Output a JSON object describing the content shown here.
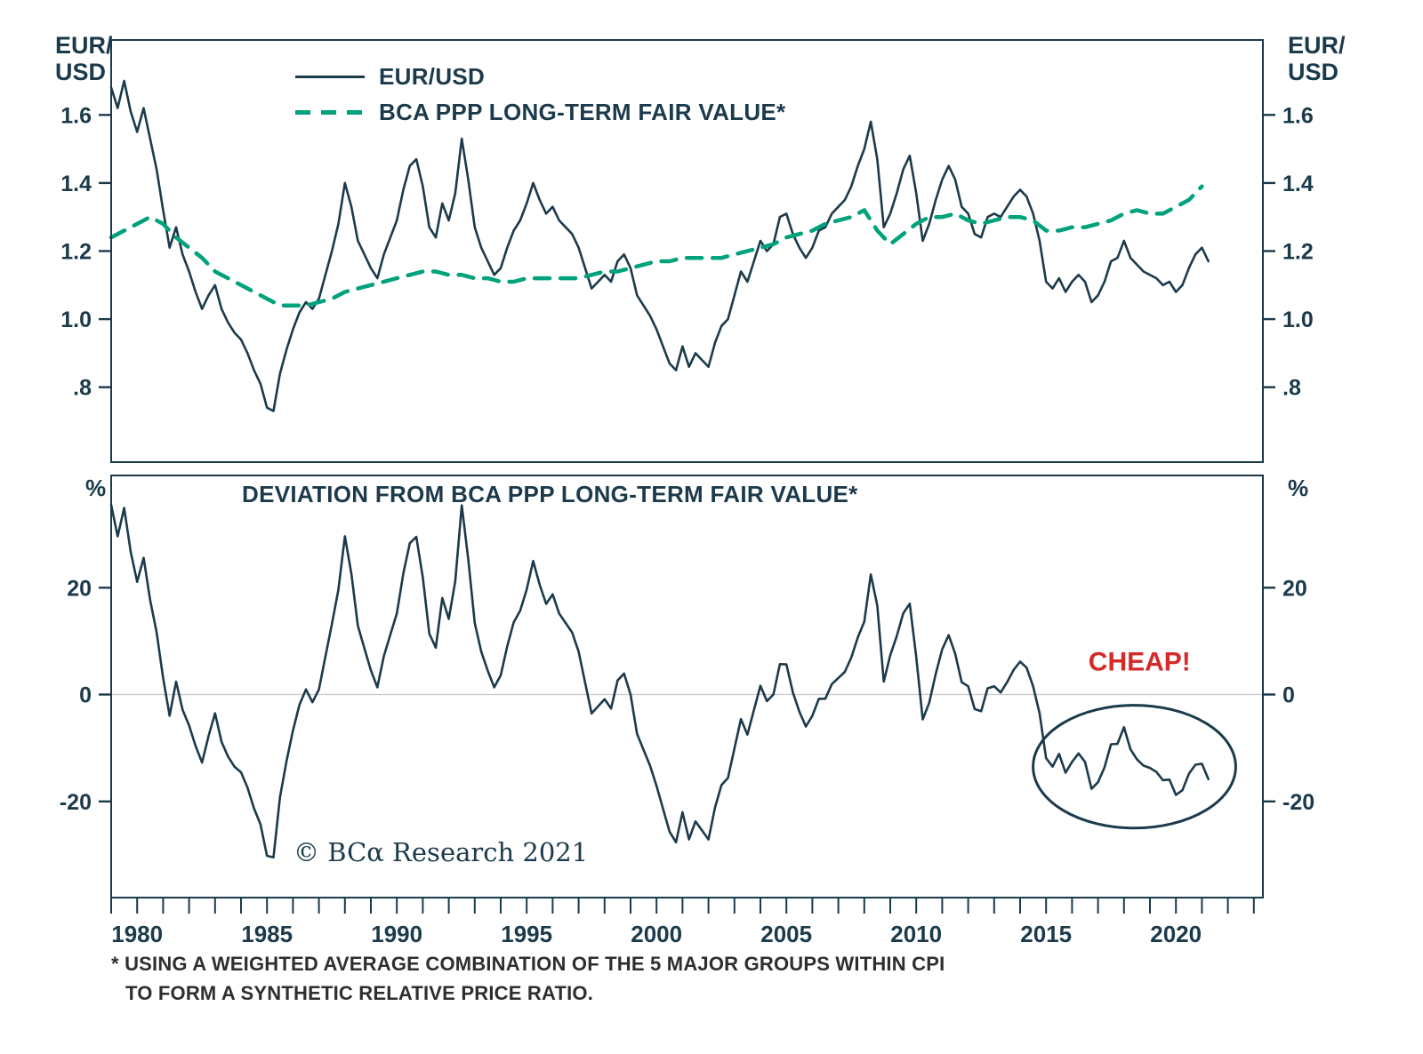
{
  "colors": {
    "navy": "#1b3a4b",
    "green": "#00a27b",
    "red": "#d42a2a",
    "zero_line": "#c9c9c9",
    "background": "#ffffff"
  },
  "top_panel": {
    "unit_label_line1": "EUR/",
    "unit_label_line2": "USD",
    "legend": [
      {
        "label": "EUR/USD",
        "style": "solid",
        "color": "#1b3a4b"
      },
      {
        "label": "BCA PPP LONG-TERM FAIR VALUE*",
        "style": "dashed",
        "color": "#00a27b"
      }
    ]
  },
  "bottom_panel": {
    "unit_label": "%",
    "title": "DEVIATION FROM BCA PPP LONG-TERM FAIR VALUE*",
    "cheap_annotation": "CHEAP!",
    "copyright": "© BCα Research 2021"
  },
  "footnote": {
    "line1": "* USING A WEIGHTED AVERAGE COMBINATION OF THE 5 MAJOR GROUPS WITHIN CPI",
    "line2": "TO FORM A SYNTHETIC RELATIVE PRICE RATIO."
  },
  "chart_data": [
    {
      "type": "line",
      "panel": "top",
      "ylabel": "EUR/USD",
      "xlim": [
        1979,
        2023.35
      ],
      "ylim": [
        0.58,
        1.82
      ],
      "yticks": [
        {
          "v": 0.8,
          "label": ".8"
        },
        {
          "v": 1.0,
          "label": "1.0"
        },
        {
          "v": 1.2,
          "label": "1.2"
        },
        {
          "v": 1.4,
          "label": "1.4"
        },
        {
          "v": 1.6,
          "label": "1.6"
        }
      ],
      "series": [
        {
          "name": "EUR/USD",
          "style": "solid",
          "color": "#1b3a4b",
          "x_start": 1979.0,
          "x_step": 0.25,
          "values": [
            1.68,
            1.62,
            1.7,
            1.61,
            1.55,
            1.62,
            1.53,
            1.44,
            1.32,
            1.21,
            1.27,
            1.19,
            1.14,
            1.08,
            1.03,
            1.07,
            1.1,
            1.03,
            0.99,
            0.96,
            0.94,
            0.9,
            0.85,
            0.81,
            0.74,
            0.73,
            0.84,
            0.91,
            0.97,
            1.02,
            1.05,
            1.03,
            1.06,
            1.13,
            1.2,
            1.28,
            1.4,
            1.33,
            1.23,
            1.19,
            1.15,
            1.12,
            1.19,
            1.24,
            1.29,
            1.38,
            1.45,
            1.47,
            1.39,
            1.27,
            1.24,
            1.34,
            1.29,
            1.37,
            1.53,
            1.41,
            1.27,
            1.21,
            1.17,
            1.13,
            1.15,
            1.21,
            1.26,
            1.29,
            1.34,
            1.4,
            1.35,
            1.31,
            1.33,
            1.29,
            1.27,
            1.25,
            1.21,
            1.15,
            1.09,
            1.11,
            1.13,
            1.11,
            1.17,
            1.19,
            1.15,
            1.07,
            1.04,
            1.01,
            0.97,
            0.92,
            0.87,
            0.85,
            0.92,
            0.86,
            0.9,
            0.88,
            0.86,
            0.93,
            0.98,
            1.0,
            1.07,
            1.14,
            1.11,
            1.17,
            1.23,
            1.2,
            1.22,
            1.3,
            1.31,
            1.25,
            1.21,
            1.18,
            1.21,
            1.26,
            1.27,
            1.31,
            1.33,
            1.35,
            1.39,
            1.45,
            1.5,
            1.58,
            1.47,
            1.27,
            1.31,
            1.37,
            1.44,
            1.48,
            1.37,
            1.23,
            1.28,
            1.35,
            1.41,
            1.45,
            1.41,
            1.33,
            1.31,
            1.25,
            1.24,
            1.3,
            1.31,
            1.3,
            1.33,
            1.36,
            1.38,
            1.36,
            1.31,
            1.23,
            1.11,
            1.09,
            1.12,
            1.08,
            1.11,
            1.13,
            1.11,
            1.05,
            1.07,
            1.11,
            1.17,
            1.18,
            1.23,
            1.18,
            1.16,
            1.14,
            1.13,
            1.12,
            1.1,
            1.11,
            1.08,
            1.1,
            1.15,
            1.19,
            1.21,
            1.17
          ]
        },
        {
          "name": "BCA PPP LONG-TERM FAIR VALUE*",
          "style": "dashed",
          "color": "#00a27b",
          "x_start": 1979.0,
          "x_step": 0.5,
          "values": [
            1.24,
            1.26,
            1.28,
            1.3,
            1.28,
            1.24,
            1.21,
            1.18,
            1.14,
            1.12,
            1.1,
            1.08,
            1.06,
            1.04,
            1.04,
            1.04,
            1.05,
            1.06,
            1.08,
            1.09,
            1.1,
            1.11,
            1.12,
            1.13,
            1.14,
            1.14,
            1.13,
            1.13,
            1.12,
            1.12,
            1.11,
            1.11,
            1.12,
            1.12,
            1.12,
            1.12,
            1.12,
            1.13,
            1.14,
            1.14,
            1.15,
            1.16,
            1.17,
            1.17,
            1.18,
            1.18,
            1.18,
            1.18,
            1.19,
            1.2,
            1.21,
            1.22,
            1.24,
            1.25,
            1.26,
            1.28,
            1.29,
            1.3,
            1.32,
            1.26,
            1.22,
            1.25,
            1.28,
            1.3,
            1.3,
            1.31,
            1.29,
            1.28,
            1.29,
            1.3,
            1.3,
            1.29,
            1.26,
            1.26,
            1.27,
            1.27,
            1.28,
            1.29,
            1.31,
            1.32,
            1.31,
            1.31,
            1.33,
            1.35,
            1.39
          ]
        }
      ]
    },
    {
      "type": "line",
      "panel": "bottom",
      "title": "DEVIATION FROM BCA PPP LONG-TERM FAIR VALUE*",
      "ylabel": "%",
      "xlim": [
        1979,
        2023.35
      ],
      "ylim": [
        -38,
        41
      ],
      "yticks": [
        {
          "v": 20,
          "label": "20"
        },
        {
          "v": 0,
          "label": "0"
        },
        {
          "v": -20,
          "label": "-20"
        }
      ],
      "zero_line": true,
      "xticks": [
        1980,
        1985,
        1990,
        1995,
        2000,
        2005,
        2010,
        2015,
        2020
      ],
      "minor_xtick_step": 1,
      "series": [
        {
          "name": "DEVIATION FROM BCA PPP LONG-TERM FAIR VALUE (%)",
          "style": "solid",
          "color": "#1b3a4b",
          "derived": {
            "formula": "100 * (EURUSD / PPP - 1)",
            "numerator": "EUR/USD",
            "denominator": "BCA PPP LONG-TERM FAIR VALUE*"
          }
        }
      ],
      "annotations": {
        "label": {
          "text": "CHEAP!",
          "x": 2018.6,
          "y": 4.5,
          "color": "#d42a2a"
        },
        "ellipse": {
          "cx": 2018.4,
          "cy": -13.5,
          "rx": 3.9,
          "ry": 11.5,
          "color": "#1b3a4b"
        }
      }
    }
  ]
}
